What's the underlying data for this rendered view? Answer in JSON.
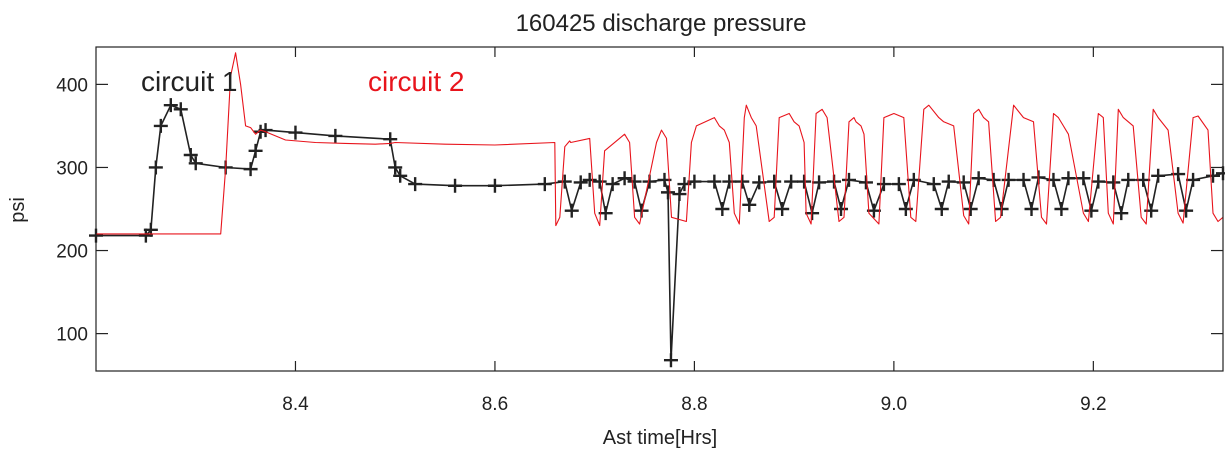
{
  "chart_data": {
    "type": "line",
    "title": "160425 discharge pressure",
    "xlabel": "Ast time[Hrs]",
    "ylabel": "psi",
    "xlim": [
      8.2,
      9.33
    ],
    "ylim": [
      55,
      445
    ],
    "xticks": [
      "8.4",
      "8.6",
      "8.8",
      "9.0",
      "9.2"
    ],
    "yticks": [
      "100",
      "200",
      "300",
      "400"
    ],
    "grid": false,
    "legend_position": "top-left",
    "series": [
      {
        "name": "circuit 1",
        "color": "#222222",
        "marker": "plus",
        "x": [
          8.2,
          8.25,
          8.255,
          8.26,
          8.265,
          8.275,
          8.285,
          8.295,
          8.3,
          8.33,
          8.355,
          8.36,
          8.365,
          8.37,
          8.4,
          8.44,
          8.495,
          8.5,
          8.505,
          8.52,
          8.56,
          8.6,
          8.65,
          8.67,
          8.677,
          8.686,
          8.695,
          8.705,
          8.711,
          8.718,
          8.73,
          8.74,
          8.747,
          8.755,
          8.77,
          8.7735,
          8.7765,
          8.785,
          8.79,
          8.8,
          8.82,
          8.828,
          8.835,
          8.848,
          8.855,
          8.865,
          8.88,
          8.888,
          8.897,
          8.91,
          8.918,
          8.925,
          8.94,
          8.947,
          8.955,
          8.972,
          8.98,
          8.99,
          9.005,
          9.012,
          9.02,
          9.04,
          9.048,
          9.055,
          9.07,
          9.077,
          9.085,
          9.1,
          9.108,
          9.115,
          9.13,
          9.138,
          9.145,
          9.16,
          9.168,
          9.175,
          9.19,
          9.198,
          9.205,
          9.22,
          9.228,
          9.235,
          9.25,
          9.258,
          9.265,
          9.285,
          9.293,
          9.3,
          9.32,
          9.33
        ],
        "y": [
          218,
          218,
          225,
          300,
          350,
          375,
          370,
          315,
          305,
          300,
          298,
          320,
          343,
          345,
          342,
          338,
          334,
          300,
          290,
          280,
          278,
          278,
          280,
          283,
          248,
          282,
          285,
          283,
          245,
          280,
          287,
          283,
          248,
          283,
          285,
          270,
          68,
          268,
          280,
          283,
          283,
          250,
          283,
          283,
          255,
          282,
          283,
          250,
          283,
          283,
          245,
          282,
          283,
          250,
          285,
          282,
          248,
          280,
          280,
          250,
          285,
          280,
          250,
          283,
          282,
          250,
          287,
          285,
          250,
          285,
          285,
          250,
          288,
          285,
          250,
          287,
          287,
          248,
          283,
          282,
          245,
          285,
          285,
          248,
          290,
          292,
          248,
          285,
          290,
          293
        ]
      },
      {
        "name": "circuit 2",
        "color": "#e8141c",
        "marker": "none",
        "x": [
          8.2,
          8.32,
          8.325,
          8.33,
          8.335,
          8.34,
          8.345,
          8.35,
          8.355,
          8.36,
          8.365,
          8.37,
          8.39,
          8.42,
          8.45,
          8.48,
          8.495,
          8.5,
          8.55,
          8.6,
          8.66,
          8.661,
          8.665,
          8.67,
          8.675,
          8.676,
          8.695,
          8.7,
          8.705,
          8.71,
          8.73,
          8.735,
          8.74,
          8.745,
          8.762,
          8.767,
          8.772,
          8.777,
          8.792,
          8.797,
          8.802,
          8.82,
          8.825,
          8.83,
          8.835,
          8.84,
          8.845,
          8.85,
          8.852,
          8.857,
          8.862,
          8.875,
          8.88,
          8.885,
          8.895,
          8.9,
          8.905,
          8.91,
          8.912,
          8.917,
          8.922,
          8.928,
          8.933,
          8.945,
          8.95,
          8.955,
          8.96,
          8.962,
          8.967,
          8.97,
          8.975,
          8.985,
          8.99,
          9.0,
          9.01,
          9.017,
          9.022,
          9.03,
          9.035,
          9.045,
          9.05,
          9.06,
          9.07,
          9.075,
          9.08,
          9.085,
          9.09,
          9.095,
          9.102,
          9.107,
          9.12,
          9.13,
          9.14,
          9.148,
          9.153,
          9.16,
          9.165,
          9.17,
          9.175,
          9.19,
          9.195,
          9.205,
          9.21,
          9.215,
          9.22,
          9.225,
          9.23,
          9.24,
          9.248,
          9.253,
          9.26,
          9.265,
          9.275,
          9.285,
          9.29,
          9.3,
          9.305,
          9.315,
          9.32,
          9.325,
          9.33
        ],
        "y": [
          220,
          220,
          220,
          300,
          410,
          438,
          400,
          350,
          348,
          340,
          345,
          343,
          333,
          330,
          329,
          328,
          329,
          330,
          328,
          327,
          330,
          230,
          240,
          325,
          332,
          330,
          335,
          245,
          230,
          320,
          340,
          330,
          240,
          232,
          330,
          345,
          335,
          240,
          235,
          330,
          350,
          360,
          350,
          345,
          330,
          245,
          232,
          360,
          375,
          360,
          350,
          235,
          240,
          360,
          365,
          355,
          350,
          330,
          245,
          232,
          365,
          370,
          360,
          235,
          240,
          355,
          360,
          355,
          350,
          340,
          245,
          232,
          360,
          365,
          360,
          240,
          235,
          370,
          375,
          360,
          355,
          350,
          242,
          232,
          365,
          370,
          360,
          355,
          235,
          240,
          375,
          360,
          355,
          240,
          232,
          365,
          360,
          350,
          340,
          245,
          235,
          365,
          360,
          245,
          232,
          370,
          360,
          350,
          240,
          232,
          370,
          360,
          345,
          245,
          233,
          360,
          362,
          345,
          245,
          235,
          240
        ]
      }
    ]
  }
}
